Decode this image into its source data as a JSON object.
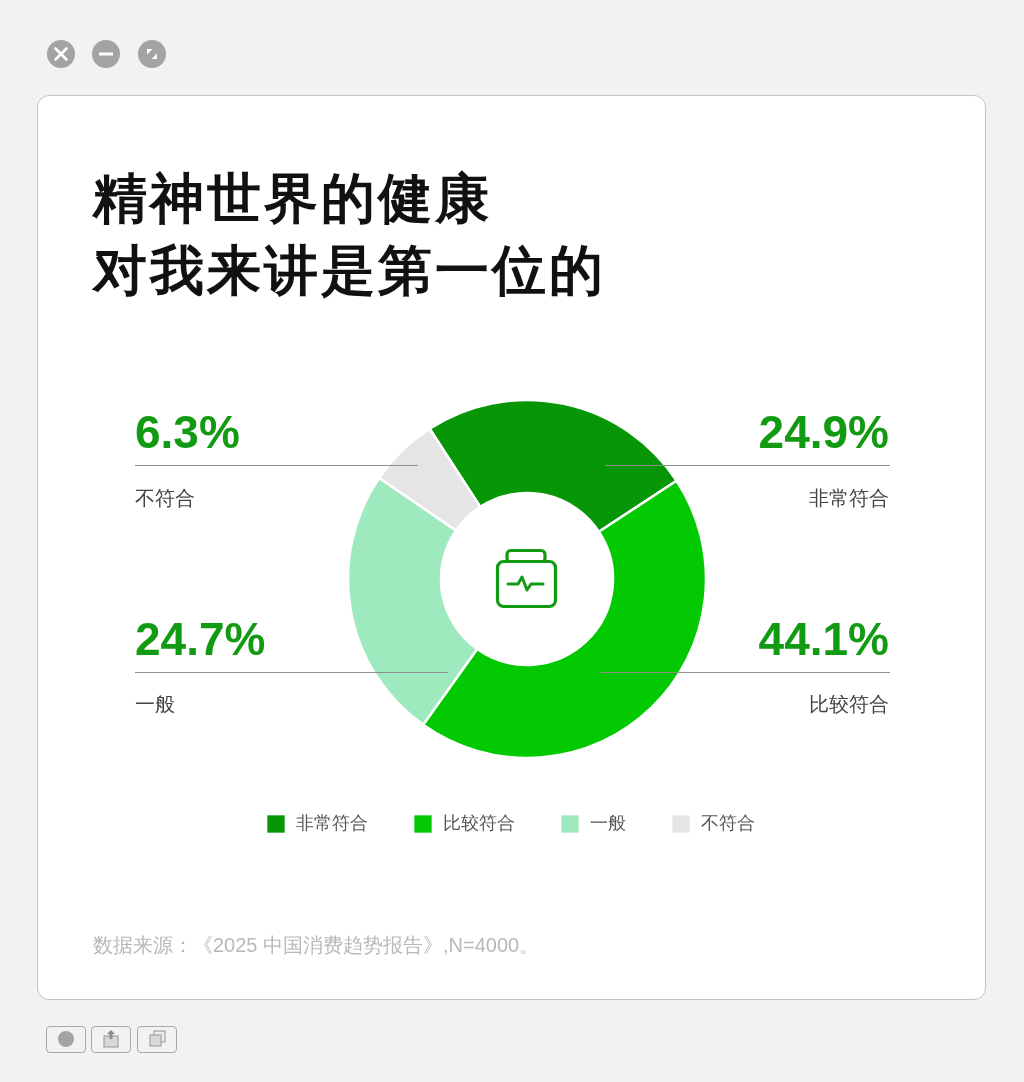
{
  "chart_data": {
    "type": "donut",
    "title": "精神世界的健康对我来讲是第一位的",
    "categories": [
      "非常符合",
      "比较符合",
      "一般",
      "不符合"
    ],
    "values": [
      24.9,
      44.1,
      24.7,
      6.3
    ],
    "colors": [
      "#069606",
      "#02c902",
      "#9fe9bf",
      "#e5e5e5"
    ],
    "value_labels": [
      "24.9%",
      "44.1%",
      "24.7%",
      "6.3%"
    ],
    "legend": "bottom",
    "annotations": [
      "数据来源：《2025 中国消费趋势报告》,N=4000。"
    ]
  }
}
